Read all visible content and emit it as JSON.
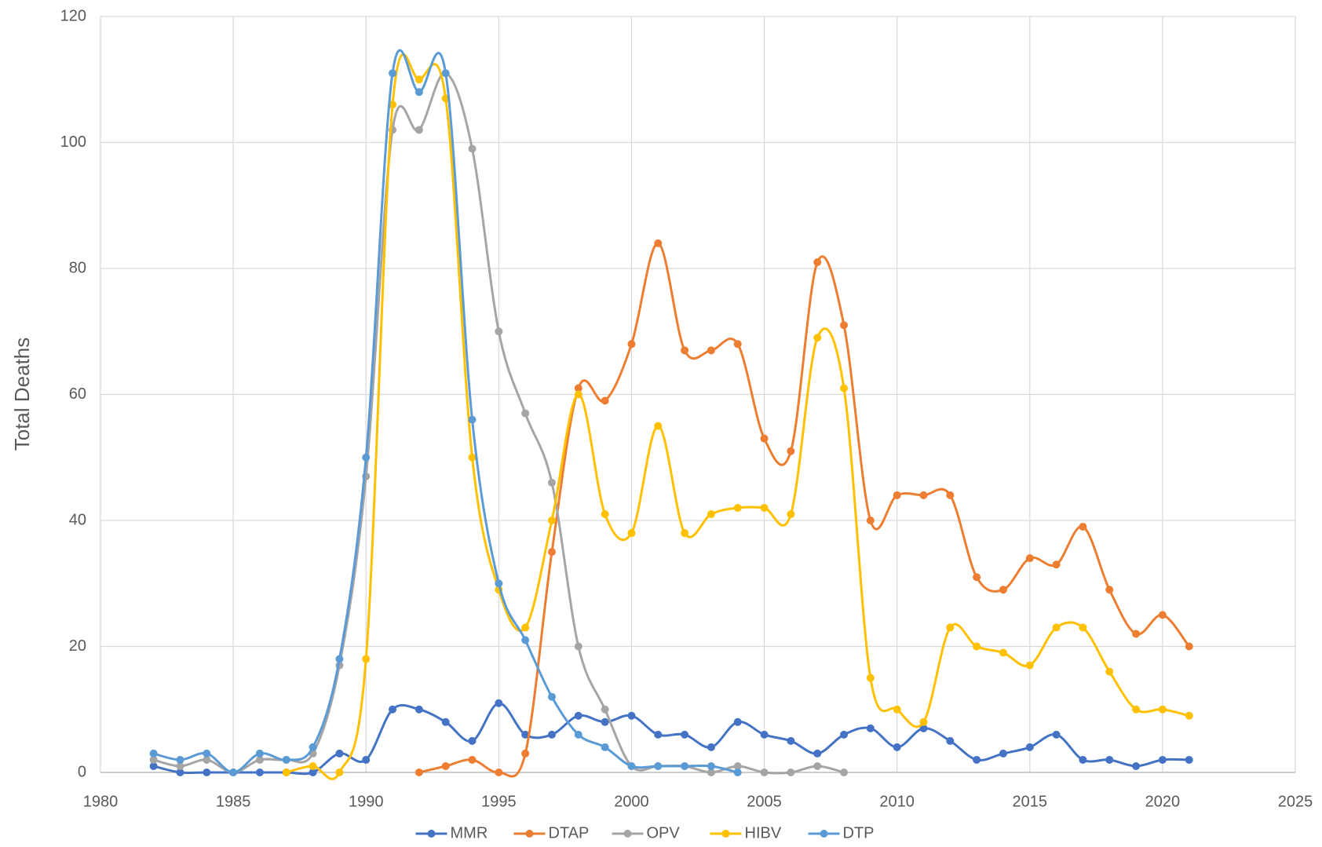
{
  "chart_data": {
    "type": "line",
    "ylabel": "Total Deaths",
    "x": [
      1982,
      1983,
      1984,
      1985,
      1986,
      1987,
      1988,
      1989,
      1990,
      1991,
      1992,
      1993,
      1994,
      1995,
      1996,
      1997,
      1998,
      1999,
      2000,
      2001,
      2002,
      2003,
      2004,
      2005,
      2006,
      2007,
      2008,
      2009,
      2010,
      2011,
      2012,
      2013,
      2014,
      2015,
      2016,
      2017,
      2018,
      2019,
      2020,
      2021
    ],
    "series": [
      {
        "name": "MMR",
        "color": "#4472c4",
        "values": [
          1,
          0,
          0,
          0,
          0,
          0,
          0,
          3,
          2,
          10,
          10,
          8,
          5,
          11,
          6,
          6,
          9,
          8,
          9,
          6,
          6,
          4,
          8,
          6,
          5,
          3,
          6,
          7,
          4,
          7,
          5,
          2,
          3,
          4,
          6,
          2,
          2,
          1,
          2,
          2
        ]
      },
      {
        "name": "DTAP",
        "color": "#ed7d31",
        "values": [
          null,
          null,
          null,
          null,
          null,
          null,
          null,
          null,
          null,
          null,
          0,
          1,
          2,
          0,
          3,
          35,
          61,
          59,
          68,
          84,
          67,
          67,
          68,
          53,
          51,
          81,
          71,
          40,
          44,
          44,
          44,
          31,
          29,
          34,
          33,
          39,
          29,
          22,
          25,
          20
        ]
      },
      {
        "name": "OPV",
        "color": "#a5a5a5",
        "values": [
          2,
          1,
          2,
          0,
          2,
          2,
          3,
          17,
          47,
          102,
          102,
          111,
          99,
          70,
          57,
          46,
          20,
          10,
          1,
          1,
          1,
          0,
          1,
          0,
          0,
          1,
          0,
          null,
          null,
          null,
          null,
          null,
          null,
          null,
          null,
          null,
          null,
          null,
          null,
          null
        ]
      },
      {
        "name": "HIBV",
        "color": "#ffc000",
        "values": [
          null,
          null,
          null,
          null,
          null,
          0,
          1,
          0,
          18,
          106,
          110,
          107,
          50,
          29,
          23,
          40,
          60,
          41,
          38,
          55,
          38,
          41,
          42,
          42,
          41,
          69,
          61,
          15,
          10,
          8,
          23,
          20,
          19,
          17,
          23,
          23,
          16,
          10,
          10,
          9
        ]
      },
      {
        "name": "DTP",
        "color": "#5b9bd5",
        "values": [
          3,
          2,
          3,
          0,
          3,
          2,
          4,
          18,
          50,
          111,
          108,
          111,
          56,
          30,
          21,
          12,
          6,
          4,
          1,
          1,
          1,
          1,
          0,
          null,
          null,
          null,
          null,
          null,
          null,
          null,
          null,
          null,
          null,
          null,
          null,
          null,
          null,
          null,
          null,
          null
        ]
      }
    ],
    "xlim": [
      1980,
      2025
    ],
    "xticks": [
      1980,
      1985,
      1990,
      1995,
      2000,
      2005,
      2010,
      2015,
      2020,
      2025
    ],
    "ylim": [
      0,
      120
    ],
    "yticks": [
      0,
      20,
      40,
      60,
      80,
      100,
      120
    ],
    "grid": true,
    "legend": "bottom"
  }
}
